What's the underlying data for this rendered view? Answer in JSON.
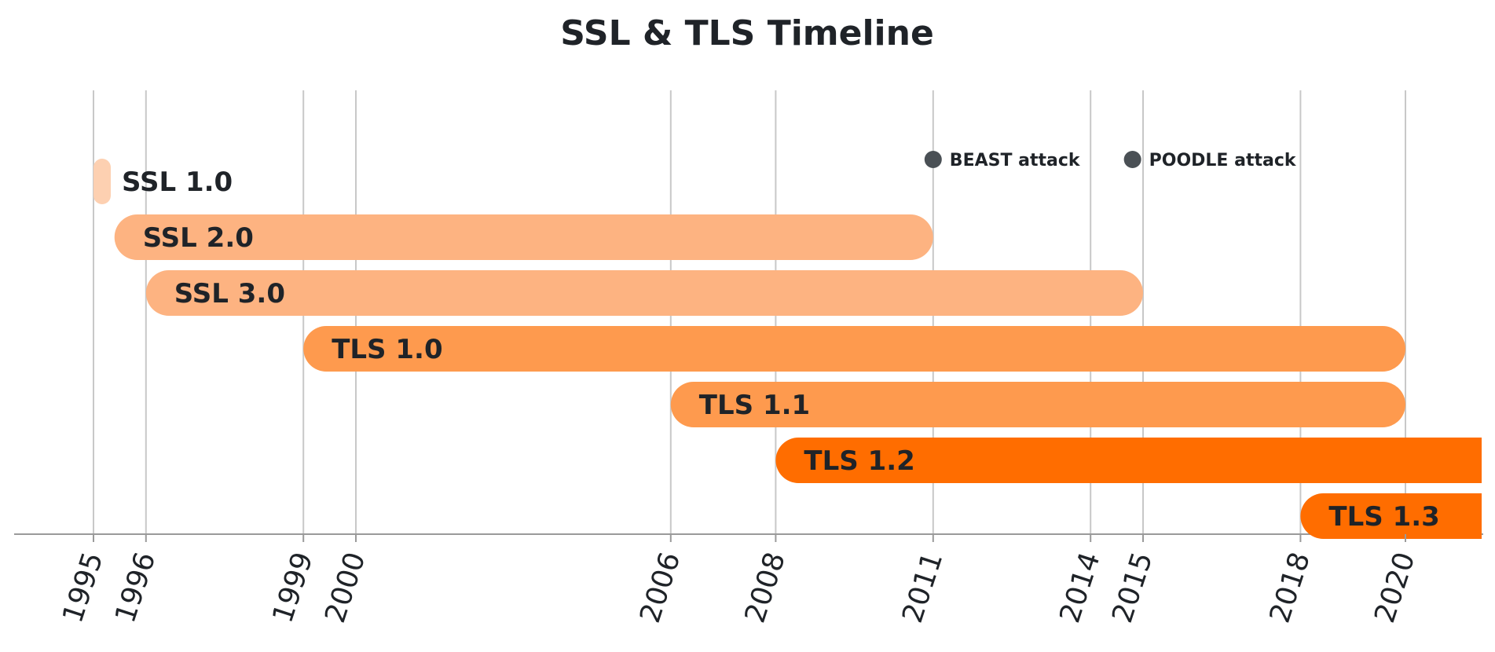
{
  "chart_data": {
    "type": "timeline",
    "title": "SSL & TLS Timeline",
    "x_ticks": [
      1995,
      1996,
      1999,
      2000,
      2006,
      2008,
      2011,
      2014,
      2015,
      2018,
      2020
    ],
    "xlim": [
      1993.5,
      2021.6
    ],
    "bars": [
      {
        "name": "SSL 1.0",
        "start": 1995,
        "end": 1995.1,
        "color": "#fdd0b1"
      },
      {
        "name": "SSL 2.0",
        "start": 1995.4,
        "end": 2011,
        "color": "#fdb381"
      },
      {
        "name": "SSL 3.0",
        "start": 1996,
        "end": 2015,
        "color": "#fdb381"
      },
      {
        "name": "TLS 1.0",
        "start": 1999,
        "end": 2020,
        "color": "#fe9a4e"
      },
      {
        "name": "TLS 1.1",
        "start": 2006,
        "end": 2020,
        "color": "#fe9a4e"
      },
      {
        "name": "TLS 1.2",
        "start": 2008,
        "end": 2021.5,
        "color": "#ff6d00",
        "ongoing": true
      },
      {
        "name": "TLS 1.3",
        "start": 2018,
        "end": 2021.5,
        "color": "#ff6d00",
        "ongoing": true
      }
    ],
    "events": [
      {
        "name": "BEAST attack",
        "x": 2011
      },
      {
        "name": "POODLE attack",
        "x": 2014.8
      }
    ],
    "grid": true
  }
}
